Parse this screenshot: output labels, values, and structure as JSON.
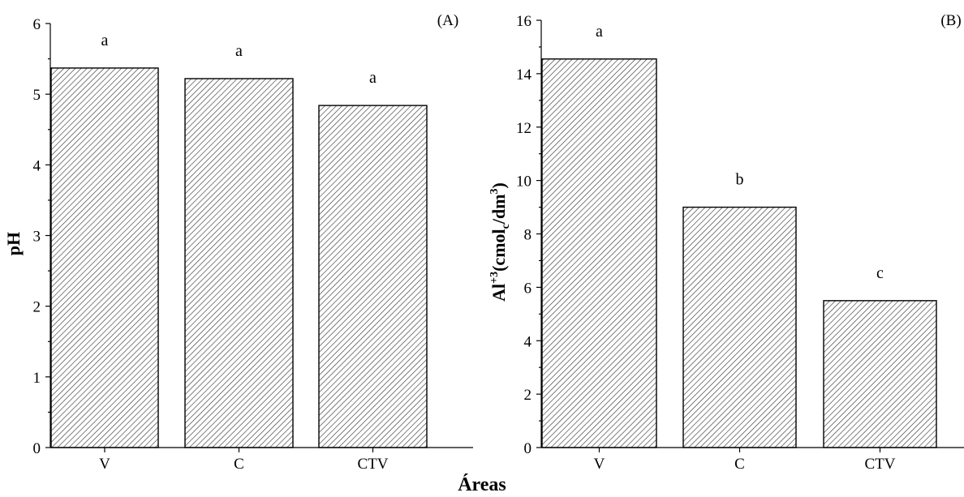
{
  "shared_xlabel": "Áreas",
  "chart_data": [
    {
      "type": "bar",
      "panel": "(A)",
      "categories": [
        "V",
        "C",
        "CTV"
      ],
      "values": [
        5.37,
        5.22,
        4.84
      ],
      "letters": [
        "a",
        "a",
        "a"
      ],
      "ylabel": "pH",
      "ylabel_parts": [],
      "ylim": [
        0,
        6
      ],
      "yticks": [
        0,
        1,
        2,
        3,
        4,
        5,
        6
      ],
      "xlabel": "Áreas",
      "fill": "diagonal-hatch",
      "legend": "none",
      "grid": false
    },
    {
      "type": "bar",
      "panel": "(B)",
      "categories": [
        "V",
        "C",
        "CTV"
      ],
      "values": [
        14.55,
        9.0,
        5.5
      ],
      "letters": [
        "a",
        "b",
        "c"
      ],
      "ylabel": "Al+3(cmolc/dm3)",
      "ylabel_parts": [
        {
          "t": "Al",
          "s": "base"
        },
        {
          "t": "+3",
          "s": "sup"
        },
        {
          "t": "(cmol",
          "s": "base"
        },
        {
          "t": "c",
          "s": "sub"
        },
        {
          "t": "/dm",
          "s": "base"
        },
        {
          "t": "3",
          "s": "sup"
        },
        {
          "t": ")",
          "s": "base"
        }
      ],
      "ylim": [
        0,
        16
      ],
      "yticks": [
        0,
        2,
        4,
        6,
        8,
        10,
        12,
        14,
        16
      ],
      "xlabel": "Áreas",
      "fill": "diagonal-hatch",
      "legend": "none",
      "grid": false
    }
  ],
  "colors": {
    "bar_stroke": "#000000",
    "hatch": "#444444",
    "background": "#ffffff"
  }
}
